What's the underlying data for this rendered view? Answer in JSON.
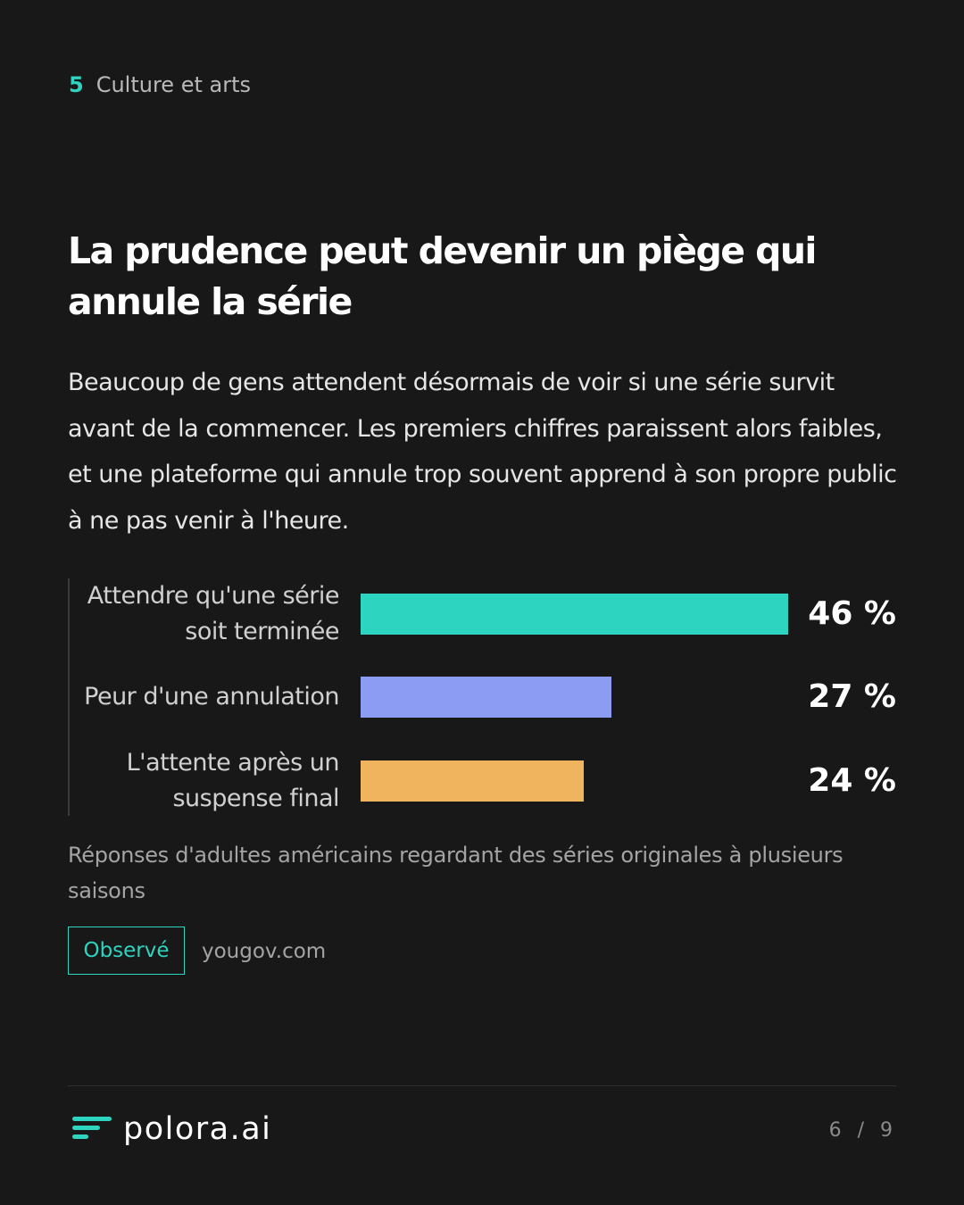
{
  "section": {
    "number": "5",
    "name": "Culture et arts"
  },
  "title": "La prudence peut devenir un piège qui annule la série",
  "body": "Beaucoup de gens attendent désormais de voir si une série survit avant de la commencer. Les premiers chiffres paraissent alors faibles, et une plateforme qui annule trop souvent apprend à son propre public à ne pas venir à l'heure.",
  "chart_data": {
    "type": "bar",
    "orientation": "horizontal",
    "categories": [
      "Attendre qu'une série soit terminée",
      "Peur d'une annulation",
      "L'attente après un suspense final"
    ],
    "values": [
      46,
      27,
      24
    ],
    "value_labels": [
      "46 %",
      "27 %",
      "24 %"
    ],
    "colors": [
      "#2dd4bf",
      "#8b9cf2",
      "#f0b45e"
    ],
    "xlim": [
      0,
      46
    ],
    "grid": false
  },
  "note": "Réponses d'adultes américains regardant des séries originales à plusieurs saisons",
  "tag": "Observé",
  "source": "yougov.com",
  "footer": {
    "brand": "polora.ai",
    "brand_color": "#2dd4bf",
    "page_current": "6",
    "page_sep": "/",
    "page_total": "9"
  }
}
